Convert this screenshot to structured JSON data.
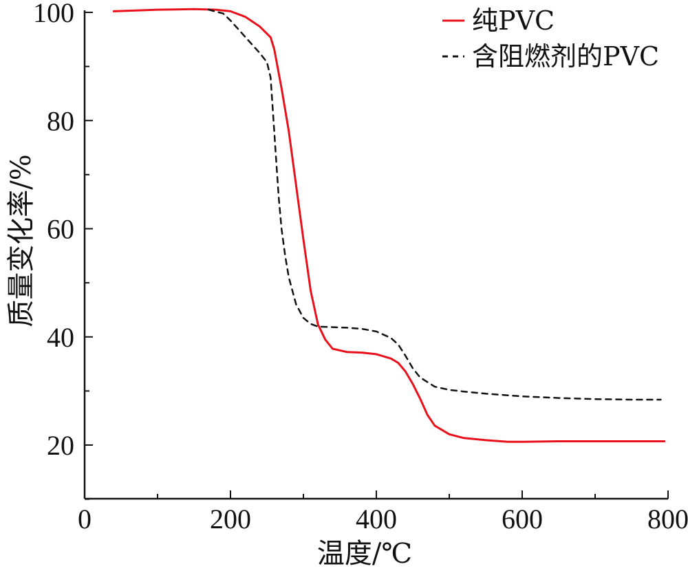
{
  "chart_data": {
    "type": "line",
    "xlabel": "温度/℃",
    "ylabel": "质量变化率/%",
    "xlim": [
      0,
      800
    ],
    "ylim": [
      10,
      100
    ],
    "xticks": [
      0,
      200,
      400,
      600,
      800
    ],
    "yticks": [
      20,
      40,
      60,
      80,
      100
    ],
    "legend_position": "top-right",
    "series": [
      {
        "name": "纯PVC",
        "color": "#e8101a",
        "style": "solid",
        "x": [
          40,
          100,
          150,
          180,
          200,
          220,
          240,
          255,
          260,
          270,
          280,
          290,
          300,
          310,
          320,
          330,
          340,
          360,
          380,
          400,
          420,
          430,
          440,
          450,
          460,
          470,
          480,
          500,
          520,
          550,
          580,
          600,
          650,
          700,
          750,
          795
        ],
        "y": [
          100.2,
          100.5,
          100.6,
          100.5,
          100.2,
          99.2,
          97.4,
          95.4,
          93.2,
          86.0,
          78.0,
          68.0,
          58.0,
          48.5,
          42.3,
          39.5,
          37.8,
          37.2,
          37.1,
          36.8,
          36.0,
          35.2,
          33.6,
          31.3,
          28.6,
          25.6,
          23.6,
          22.0,
          21.3,
          20.9,
          20.6,
          20.6,
          20.7,
          20.7,
          20.7,
          20.7
        ]
      },
      {
        "name": "含阻燃剂的PVC",
        "color": "#111111",
        "style": "dashed",
        "x": [
          170,
          190,
          200,
          210,
          220,
          230,
          240,
          250,
          255,
          258,
          262,
          266,
          270,
          275,
          280,
          290,
          300,
          310,
          320,
          340,
          360,
          380,
          400,
          420,
          430,
          440,
          450,
          460,
          480,
          500,
          520,
          550,
          600,
          650,
          700,
          750,
          790
        ],
        "y": [
          100.5,
          99.8,
          98.5,
          97.0,
          95.5,
          94.0,
          92.5,
          90.8,
          88.0,
          82.0,
          74.0,
          66.0,
          60.0,
          55.0,
          51.0,
          46.0,
          43.5,
          42.4,
          41.9,
          41.8,
          41.7,
          41.5,
          41.0,
          39.8,
          38.6,
          36.5,
          34.2,
          32.5,
          30.8,
          30.2,
          29.9,
          29.5,
          29.0,
          28.7,
          28.5,
          28.4,
          28.4
        ]
      }
    ]
  }
}
